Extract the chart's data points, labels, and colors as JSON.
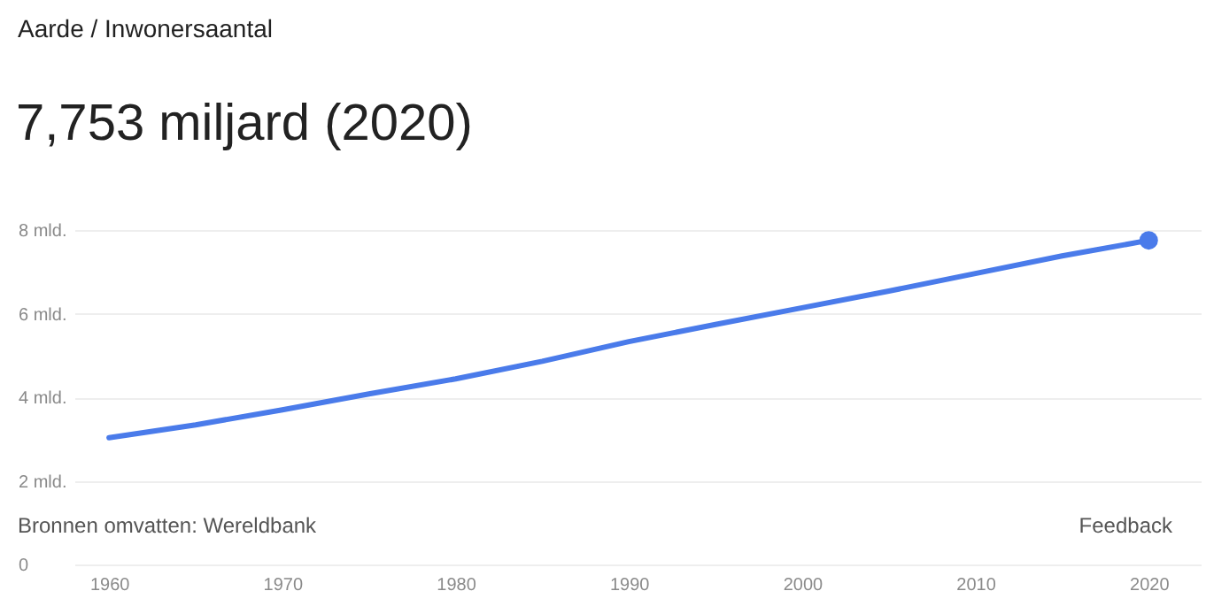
{
  "chart_data": {
    "type": "line",
    "title": "7,753 miljard (2020)",
    "subtitle": "Aarde / Inwonersaantal",
    "x": [
      1960,
      1965,
      1970,
      1975,
      1980,
      1985,
      1990,
      1995,
      2000,
      2005,
      2010,
      2015,
      2020
    ],
    "series": [
      {
        "color": "#4a7bea",
        "values": [
          3.03,
          3.34,
          3.7,
          4.08,
          4.44,
          4.86,
          5.33,
          5.74,
          6.14,
          6.54,
          6.96,
          7.38,
          7.753
        ]
      }
    ],
    "xlim": [
      1958,
      2023
    ],
    "xticks": [
      1960,
      1970,
      1980,
      1990,
      2000,
      2010,
      2020
    ],
    "ylim": [
      0,
      8
    ],
    "yticks": [
      0,
      {
        "value": 2,
        "label": "2 mld."
      },
      {
        "value": 4,
        "label": "4 mld."
      },
      {
        "value": 6,
        "label": "6 mld."
      },
      {
        "value": 8,
        "label": "8 mld."
      }
    ],
    "grid": "y",
    "annotations": [
      "Bronnen omvatten: Wereldbank",
      "Feedback"
    ]
  }
}
